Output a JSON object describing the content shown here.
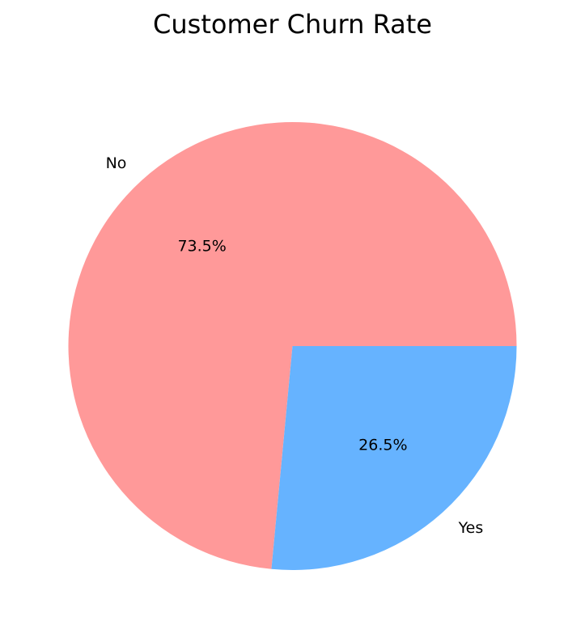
{
  "chart_data": {
    "type": "pie",
    "title": "Customer Churn Rate",
    "categories": [
      "No",
      "Yes"
    ],
    "values": [
      73.5,
      26.5
    ],
    "value_labels": [
      "73.5%",
      "26.5%"
    ],
    "colors": [
      "#ff9999",
      "#66b3ff"
    ],
    "start_angle_deg": 0,
    "direction": "counterclockwise"
  }
}
